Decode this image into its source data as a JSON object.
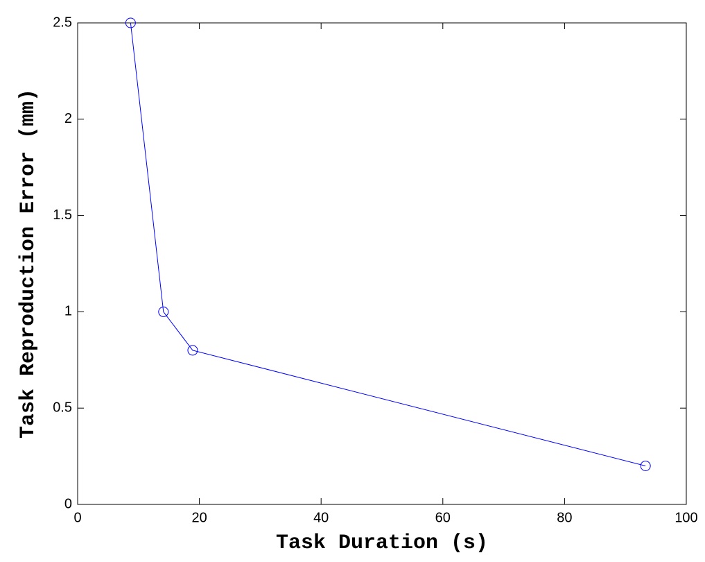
{
  "chart_data": {
    "type": "line",
    "xlabel": "Task Duration (s)",
    "ylabel": "Task Reproduction Error (mm)",
    "x": [
      8.7,
      14.1,
      18.9,
      93.3
    ],
    "values": [
      2.5,
      1.0,
      0.8,
      0.2
    ],
    "color": "#0000ff",
    "marker": "circle",
    "xlim": [
      0,
      100
    ],
    "xticks": [
      0,
      20,
      40,
      60,
      80,
      100
    ],
    "ylim": [
      0,
      2.5
    ],
    "yticks": [
      0,
      0.5,
      1,
      1.5,
      2,
      2.5
    ],
    "grid": false
  }
}
